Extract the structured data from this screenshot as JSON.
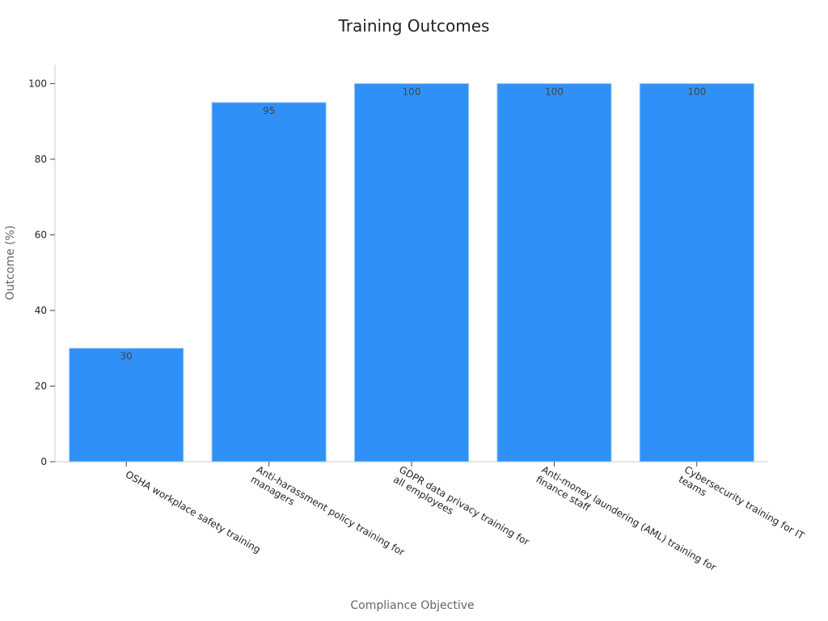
{
  "chart_data": {
    "type": "bar",
    "title": "Training Outcomes",
    "xlabel": "Compliance Objective",
    "ylabel": "Outcome (%)",
    "categories": [
      [
        "OSHA workplace safety training"
      ],
      [
        "Anti-harassment policy training for",
        "managers"
      ],
      [
        "GDPR data privacy training for",
        "all employees"
      ],
      [
        "Anti-money laundering (AML) training for",
        "finance staff"
      ],
      [
        "Cybersecurity training for IT",
        "teams"
      ]
    ],
    "values": [
      30,
      95,
      100,
      100,
      100
    ],
    "value_labels": [
      "30",
      "95",
      "100",
      "100",
      "100"
    ],
    "ylim": [
      0,
      105
    ],
    "yticks": [
      0,
      20,
      40,
      60,
      80,
      100
    ],
    "grid": false,
    "bar_color": "#2f91f8"
  }
}
